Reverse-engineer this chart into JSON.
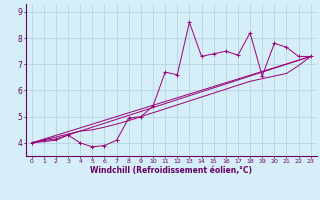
{
  "title": "",
  "xlabel": "Windchill (Refroidissement éolien,°C)",
  "ylabel": "",
  "bg_color": "#d6eef8",
  "line_color": "#990077",
  "grid_color": "#b0cfe0",
  "axis_color": "#660066",
  "tick_color": "#660066",
  "xlim": [
    -0.5,
    23.5
  ],
  "ylim": [
    3.5,
    9.3
  ],
  "xticks": [
    0,
    1,
    2,
    3,
    4,
    5,
    6,
    7,
    8,
    9,
    10,
    11,
    12,
    13,
    14,
    15,
    16,
    17,
    18,
    19,
    20,
    21,
    22,
    23
  ],
  "yticks": [
    4,
    5,
    6,
    7,
    8,
    9
  ],
  "series1_x": [
    0,
    1,
    2,
    3,
    4,
    5,
    6,
    7,
    8,
    9,
    10,
    11,
    12,
    13,
    14,
    15,
    16,
    17,
    18,
    19,
    20,
    21,
    22,
    23
  ],
  "series1_y": [
    4.0,
    4.1,
    4.15,
    4.3,
    4.0,
    3.85,
    3.9,
    4.1,
    4.95,
    5.0,
    5.4,
    6.7,
    6.6,
    8.6,
    7.3,
    7.4,
    7.5,
    7.35,
    8.2,
    6.55,
    7.8,
    7.65,
    7.3,
    7.3
  ],
  "series2_x": [
    0,
    1,
    2,
    3,
    4,
    5,
    6,
    7,
    8,
    9,
    10,
    11,
    12,
    13,
    14,
    15,
    16,
    17,
    18,
    19,
    20,
    21,
    22,
    23
  ],
  "series2_y": [
    4.0,
    4.05,
    4.1,
    4.3,
    4.45,
    4.5,
    4.6,
    4.72,
    4.85,
    5.0,
    5.15,
    5.3,
    5.45,
    5.6,
    5.75,
    5.9,
    6.05,
    6.2,
    6.35,
    6.45,
    6.55,
    6.65,
    6.95,
    7.3
  ],
  "series3_x": [
    0,
    4,
    23
  ],
  "series3_y": [
    4.0,
    4.45,
    7.3
  ],
  "series4_x": [
    0,
    23
  ],
  "series4_y": [
    4.0,
    7.3
  ]
}
